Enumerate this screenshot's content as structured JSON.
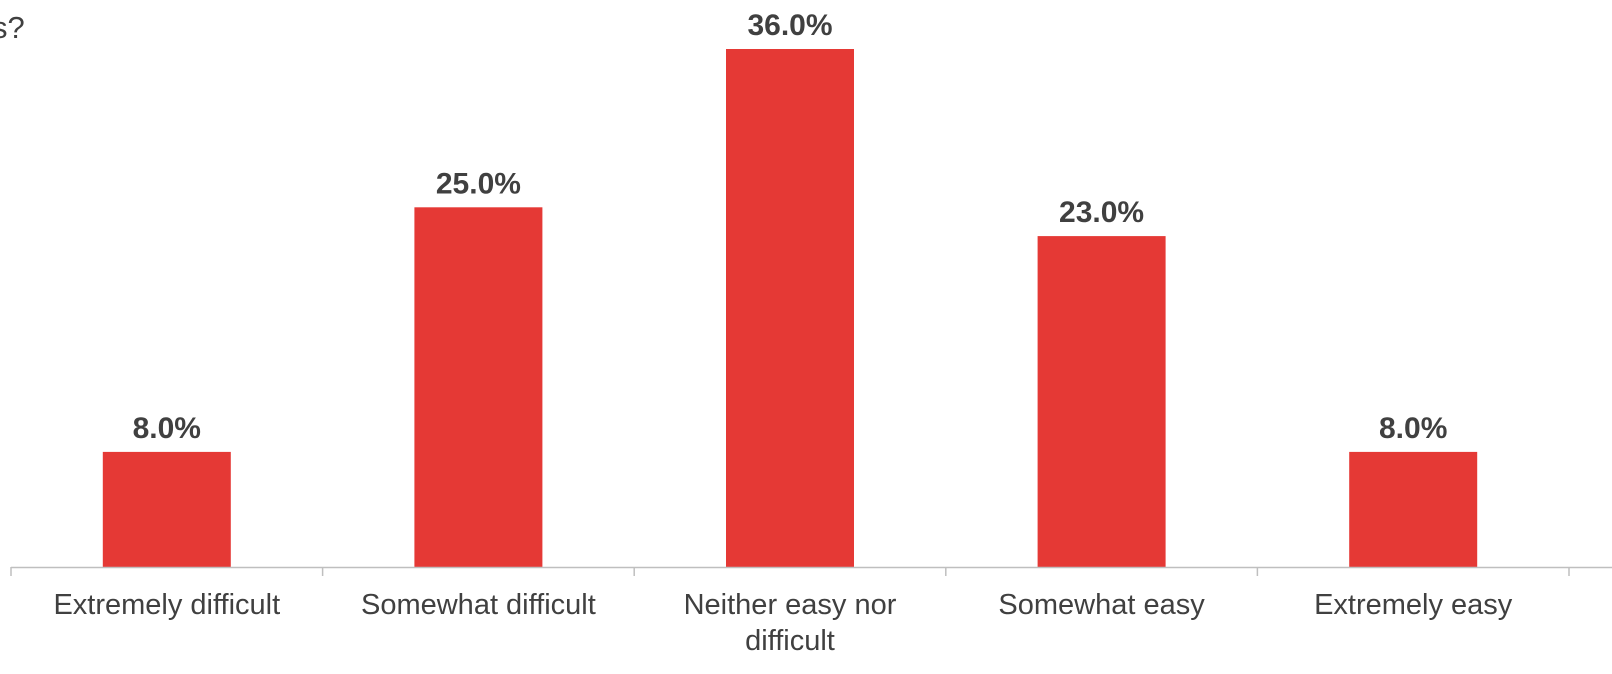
{
  "chart_data": {
    "type": "bar",
    "title": "s?",
    "categories": [
      "Extremely difficult",
      "Somewhat difficult",
      "Neither easy nor difficult",
      "Somewhat easy",
      "Extremely easy"
    ],
    "values": [
      8.0,
      25.0,
      36.0,
      23.0,
      8.0
    ],
    "data_labels": [
      "8.0%",
      "25.0%",
      "36.0%",
      "23.0%",
      "8.0%"
    ],
    "xlabel": "",
    "ylabel": "",
    "ylim": [
      0,
      36.0
    ],
    "grid": false,
    "legend": "none",
    "colors": {
      "bar": "#E53935",
      "text": "#404040",
      "axis": "#BFBFBF"
    }
  }
}
